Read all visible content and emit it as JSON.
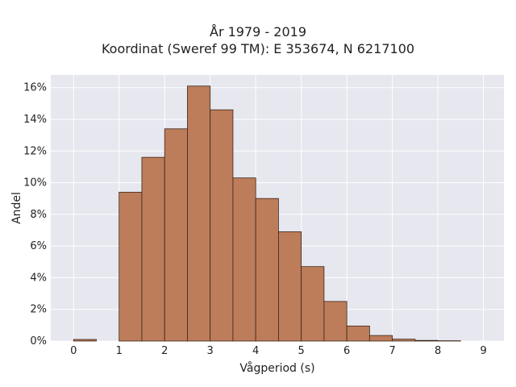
{
  "chart_data": {
    "type": "bar",
    "title_lines": [
      "År 1979 - 2019",
      "Koordinat (Sweref 99 TM): E 353674, N 6217100"
    ],
    "xlabel": "Vågperiod (s)",
    "ylabel": "Andel",
    "x_ticks": [
      0,
      1,
      2,
      3,
      4,
      5,
      6,
      7,
      8,
      9
    ],
    "y_ticks": [
      0,
      2,
      4,
      6,
      8,
      10,
      12,
      14,
      16
    ],
    "y_tick_suffix": "%",
    "xlim": [
      -0.5,
      9.45
    ],
    "ylim": [
      0,
      16.8
    ],
    "bin_width": 0.5,
    "bin_starts": [
      0,
      0.5,
      1.0,
      1.5,
      2.0,
      2.5,
      3.0,
      3.5,
      4.0,
      4.5,
      5.0,
      5.5,
      6.0,
      6.5,
      7.0,
      7.5,
      8.0
    ],
    "values": [
      0.1,
      0,
      9.4,
      11.6,
      13.4,
      16.1,
      14.6,
      10.3,
      9.0,
      6.9,
      4.7,
      2.5,
      0.95,
      0.35,
      0.12,
      0.04,
      0.02
    ],
    "grid": true,
    "colors": {
      "bar_fill": "#bd7d5a",
      "bar_stroke": "#3a2418",
      "plot_bg": "#e6e7ef",
      "grid": "#ffffff"
    }
  }
}
